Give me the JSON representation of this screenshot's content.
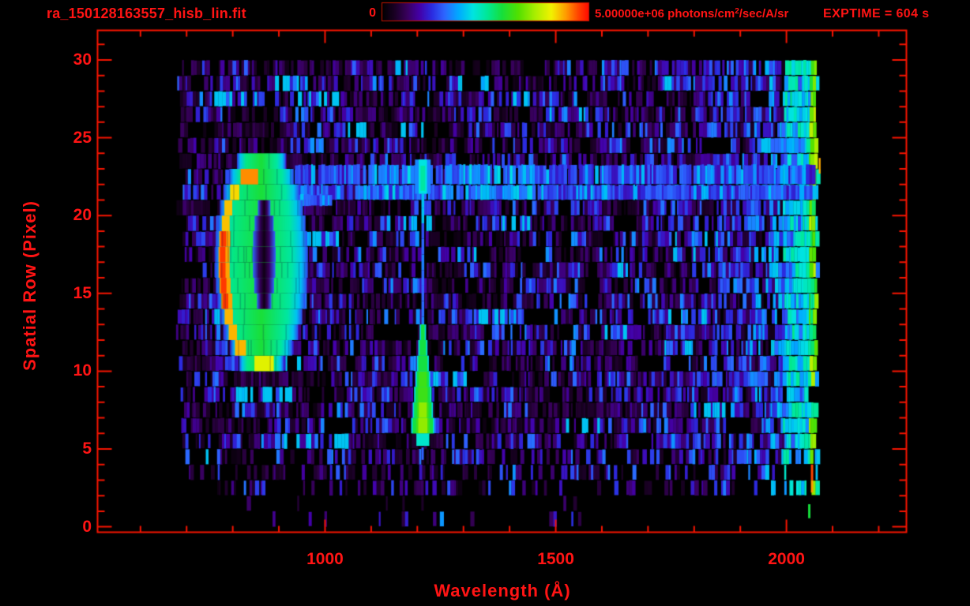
{
  "window": {
    "background": "#000000"
  },
  "header": {
    "filename": "ra_150128163557_hisb_lin.fit",
    "exptime_label": "EXPTIME = 604 s"
  },
  "colorbar": {
    "min_label": "0",
    "max_label_prefix": "5.00000e+06 photons/cm",
    "max_label_sup": "2",
    "max_label_suffix": "/sec/A/sr",
    "stops": [
      [
        0,
        "#000000"
      ],
      [
        0.06,
        "#1a0024"
      ],
      [
        0.12,
        "#38005c"
      ],
      [
        0.18,
        "#4400a8"
      ],
      [
        0.24,
        "#2b2be0"
      ],
      [
        0.3,
        "#2e64ff"
      ],
      [
        0.37,
        "#00aaff"
      ],
      [
        0.44,
        "#00e4e0"
      ],
      [
        0.51,
        "#00e896"
      ],
      [
        0.58,
        "#16df3c"
      ],
      [
        0.66,
        "#52e000"
      ],
      [
        0.74,
        "#a8ee00"
      ],
      [
        0.82,
        "#f2f200"
      ],
      [
        0.89,
        "#ff9c00"
      ],
      [
        0.95,
        "#ff4400"
      ],
      [
        1,
        "#ff0c00"
      ]
    ]
  },
  "colors": {
    "text_red": "#ff1414",
    "frame_red": "#f81400",
    "background": "#000000"
  },
  "chart_data": {
    "type": "heatmap",
    "title": "ra_150128163557_hisb_lin.fit",
    "xlabel": "Wavelength (Å)",
    "ylabel": "Spatial Row (Pixel)",
    "xlim": [
      507,
      2260
    ],
    "ylim": [
      -0.35,
      31.9
    ],
    "x_major_ticks": [
      1000,
      1500,
      2000
    ],
    "x_minor_step": 100,
    "y_major_ticks": [
      0,
      5,
      10,
      15,
      20,
      25,
      30
    ],
    "y_minor_step": 1,
    "value_range": [
      0,
      5000000
    ],
    "value_units": "photons/cm^2/sec/A/sr",
    "exposure_seconds": 604,
    "grid": false,
    "data_extent": {
      "wavelength": [
        678,
        2066
      ],
      "rows": [
        0,
        30
      ]
    },
    "noise": {
      "wavelength_start": 678,
      "wavelength_end": 2066,
      "right_glow_start": 1700,
      "dense_right_start": 1992,
      "cyan_zone": [
        2036,
        2048
      ],
      "green_column": [
        2048,
        2061
      ],
      "sparse_bottom_rows": [
        0,
        4
      ]
    },
    "features": {
      "ring": {
        "center_wavelength": 862,
        "center_row": 17.1,
        "radius_wavelength": 101,
        "radius_rows": 7.5,
        "hole": {
          "center_wavelength": 868,
          "center_row": 17.4,
          "radius_wavelength": 25,
          "radius_rows": 3.7
        },
        "hot_edge_side": "left",
        "peak_intensity": 0.96
      },
      "emission_line": {
        "wavelength": 1212,
        "column_rows": [
          12.5,
          21.4
        ],
        "column_halfwidth": 3,
        "wedge_rows": [
          5.2,
          12.5
        ],
        "wedge_max_halfwidth": 26,
        "cap_rows": [
          21.4,
          23.6
        ],
        "cap_halfwidth": 17
      },
      "horizontal_band": {
        "rows": [
          21.0,
          23.3
        ],
        "wavelength": [
          935,
          2058
        ],
        "bright_wavelength": [
          1050,
          1450
        ]
      },
      "spots": [
        {
          "wavelength": [
            2053,
            2058
          ],
          "rows": [
            3.0,
            4.0
          ],
          "intensity": 0.95
        },
        {
          "wavelength": [
            2053,
            2058
          ],
          "rows": [
            2.2,
            3.0
          ],
          "intensity": 0.89
        },
        {
          "wavelength": [
            2047,
            2052
          ],
          "rows": [
            0.55,
            1.45
          ],
          "intensity": 0.58
        },
        {
          "wavelength": [
            2070,
            2074
          ],
          "rows": [
            22.7,
            23.7
          ],
          "intensity": 0.88
        },
        {
          "wavelength": [
            1209,
            1214
          ],
          "rows": [
            4.3,
            5.1
          ],
          "intensity": 0.3
        }
      ]
    }
  }
}
